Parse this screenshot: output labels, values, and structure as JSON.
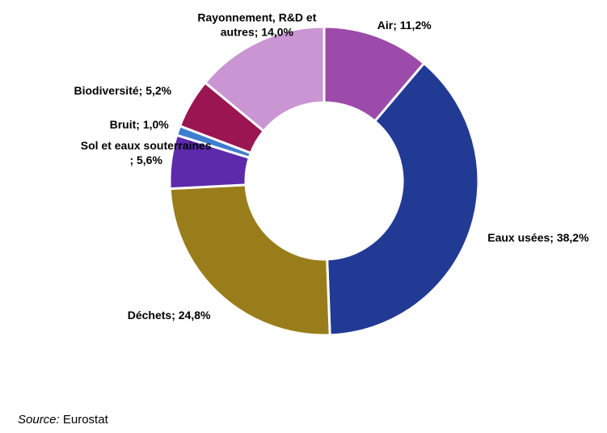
{
  "chart_data": {
    "type": "pie",
    "style": "donut",
    "slices": [
      {
        "label_lines": [
          "Air; 11,2%"
        ],
        "value": 11.2,
        "color": "#9C4BAA",
        "label_anchor": "start"
      },
      {
        "label_lines": [
          "Eaux usées; 38,2%"
        ],
        "value": 38.2,
        "color": "#213A94",
        "label_anchor": "start"
      },
      {
        "label_lines": [
          "Déchets; 24,8%"
        ],
        "value": 24.8,
        "color": "#9A7D1B",
        "label_anchor": "end"
      },
      {
        "label_lines": [
          "Sol et eaux souterraines",
          "; 5,6%"
        ],
        "value": 5.6,
        "color": "#5C2AAA",
        "label_anchor": "end"
      },
      {
        "label_lines": [
          "Bruit; 1,0%"
        ],
        "value": 1.0,
        "color": "#3E7DD0",
        "label_anchor": "end"
      },
      {
        "label_lines": [
          "Biodiversité; 5,2%"
        ],
        "value": 5.2,
        "color": "#9A1552",
        "label_anchor": "end"
      },
      {
        "label_lines": [
          "Rayonnement, R&D et",
          "autres; 14,0%"
        ],
        "value": 14.0,
        "color": "#C995D2",
        "label_anchor": "end"
      }
    ],
    "start_angle_deg": 0,
    "direction": "clockwise",
    "legend": "none"
  },
  "source": {
    "prefix": "Source:",
    "text": " Eurostat"
  }
}
